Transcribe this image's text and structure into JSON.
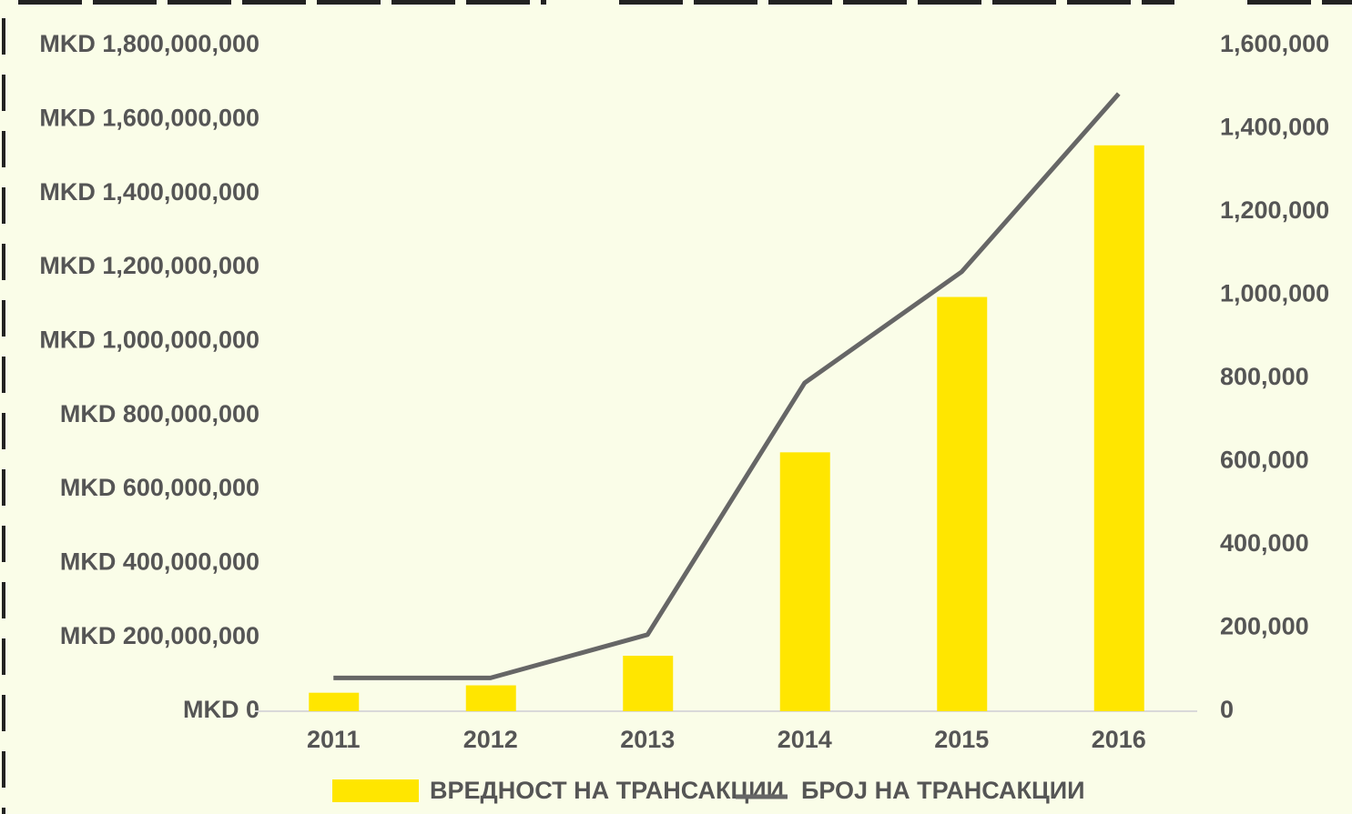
{
  "chart_data": {
    "type": "bar",
    "categories": [
      "2011",
      "2012",
      "2013",
      "2014",
      "2015",
      "2016"
    ],
    "series": [
      {
        "name": "ВРЕДНОСТ НА ТРАНСАКЦИИ",
        "type": "bar",
        "color": "#ffe600",
        "values": [
          50000000,
          70000000,
          150000000,
          700000000,
          1120000000,
          1530000000
        ]
      },
      {
        "name": "БРОЈ НА ТРАНСАКЦИИ",
        "type": "line",
        "color": "#666666",
        "axis": "y2",
        "values": [
          80000,
          80000,
          184000,
          789000,
          1056000,
          1484000
        ]
      }
    ],
    "ylim": [
      0,
      1800000000
    ],
    "yticks": [
      {
        "value": 0,
        "label": "MKD 0"
      },
      {
        "value": 200000000,
        "label": "MKD 200,000,000"
      },
      {
        "value": 400000000,
        "label": "MKD 400,000,000"
      },
      {
        "value": 600000000,
        "label": "MKD 600,000,000"
      },
      {
        "value": 800000000,
        "label": "MKD 800,000,000"
      },
      {
        "value": 1000000000,
        "label": "MKD 1,000,000,000"
      },
      {
        "value": 1200000000,
        "label": "MKD 1,200,000,000"
      },
      {
        "value": 1400000000,
        "label": "MKD 1,400,000,000"
      },
      {
        "value": 1600000000,
        "label": "MKD 1,600,000,000"
      },
      {
        "value": 1800000000,
        "label": "MKD 1,800,000,000"
      }
    ],
    "y2lim": [
      0,
      1600000
    ],
    "y2ticks": [
      0,
      {
        "value": 200000,
        "label": "200,000"
      },
      {
        "value": 400000,
        "label": "400,000"
      },
      {
        "value": 600000,
        "label": "600,000"
      },
      {
        "value": 800000,
        "label": "800,000"
      },
      {
        "value": 1000000,
        "label": "1,000,000"
      },
      {
        "value": 1200000,
        "label": "1,200,000"
      },
      {
        "value": 1400000,
        "label": "1,400,000"
      },
      {
        "value": 1600000,
        "label": "1,600,000"
      }
    ],
    "legend": "bottom"
  }
}
